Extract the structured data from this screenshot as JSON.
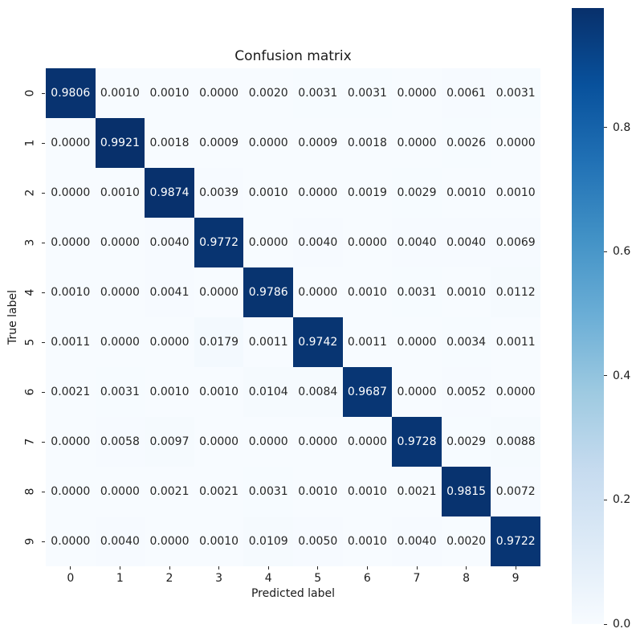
{
  "title": "Confusion matrix",
  "axes": {
    "xlabel": "Predicted label",
    "ylabel": "True label",
    "x_ticklabels": [
      "0",
      "1",
      "2",
      "3",
      "4",
      "5",
      "6",
      "7",
      "8",
      "9"
    ],
    "y_ticklabels": [
      "0",
      "1",
      "2",
      "3",
      "4",
      "5",
      "6",
      "7",
      "8",
      "9"
    ]
  },
  "colorbar": {
    "tick_labels": [
      "0.0",
      "0.2",
      "0.4",
      "0.6",
      "0.8"
    ],
    "tick_values": [
      0.0,
      0.2,
      0.4,
      0.6,
      0.8
    ]
  },
  "colors": {
    "background": "#ffffff",
    "annotation_dark": "#262626",
    "annotation_light": "#ffffff",
    "tick_color": "#262626",
    "diagonal_dark_blue": "#083370",
    "offdiagonal_light": "#f7fbff",
    "blues_colormap_stops": [
      "#f7fbff",
      "#deebf7",
      "#c6dbef",
      "#9ecae1",
      "#6baed6",
      "#4292c6",
      "#2171b5",
      "#08519c",
      "#08306b"
    ]
  },
  "chart_data": {
    "type": "heatmap",
    "title": "Confusion matrix",
    "xlabel": "Predicted label",
    "ylabel": "True label",
    "x_categories": [
      "0",
      "1",
      "2",
      "3",
      "4",
      "5",
      "6",
      "7",
      "8",
      "9"
    ],
    "y_categories": [
      "0",
      "1",
      "2",
      "3",
      "4",
      "5",
      "6",
      "7",
      "8",
      "9"
    ],
    "values": [
      [
        0.9806,
        0.001,
        0.001,
        0.0,
        0.002,
        0.0031,
        0.0031,
        0.0,
        0.0061,
        0.0031
      ],
      [
        0.0,
        0.9921,
        0.0018,
        0.0009,
        0.0,
        0.0009,
        0.0018,
        0.0,
        0.0026,
        0.0
      ],
      [
        0.0,
        0.001,
        0.9874,
        0.0039,
        0.001,
        0.0,
        0.0019,
        0.0029,
        0.001,
        0.001
      ],
      [
        0.0,
        0.0,
        0.004,
        0.9772,
        0.0,
        0.004,
        0.0,
        0.004,
        0.004,
        0.0069
      ],
      [
        0.001,
        0.0,
        0.0041,
        0.0,
        0.9786,
        0.0,
        0.001,
        0.0031,
        0.001,
        0.0112
      ],
      [
        0.0011,
        0.0,
        0.0,
        0.0179,
        0.0011,
        0.9742,
        0.0011,
        0.0,
        0.0034,
        0.0011
      ],
      [
        0.0021,
        0.0031,
        0.001,
        0.001,
        0.0104,
        0.0084,
        0.9687,
        0.0,
        0.0052,
        0.0
      ],
      [
        0.0,
        0.0058,
        0.0097,
        0.0,
        0.0,
        0.0,
        0.0,
        0.9728,
        0.0029,
        0.0088
      ],
      [
        0.0,
        0.0,
        0.0021,
        0.0021,
        0.0031,
        0.001,
        0.001,
        0.0021,
        0.9815,
        0.0072
      ],
      [
        0.0,
        0.004,
        0.0,
        0.001,
        0.0109,
        0.005,
        0.001,
        0.004,
        0.002,
        0.9722
      ]
    ],
    "annotation_format": ".4f",
    "annotations_shown": true,
    "colormap": "Blues",
    "vmin": 0.0,
    "vmax": 0.9921,
    "colorbar_position": "right",
    "colorbar_ticks": [
      0.0,
      0.2,
      0.4,
      0.6,
      0.8
    ],
    "grid": false,
    "legend": "colorbar"
  }
}
